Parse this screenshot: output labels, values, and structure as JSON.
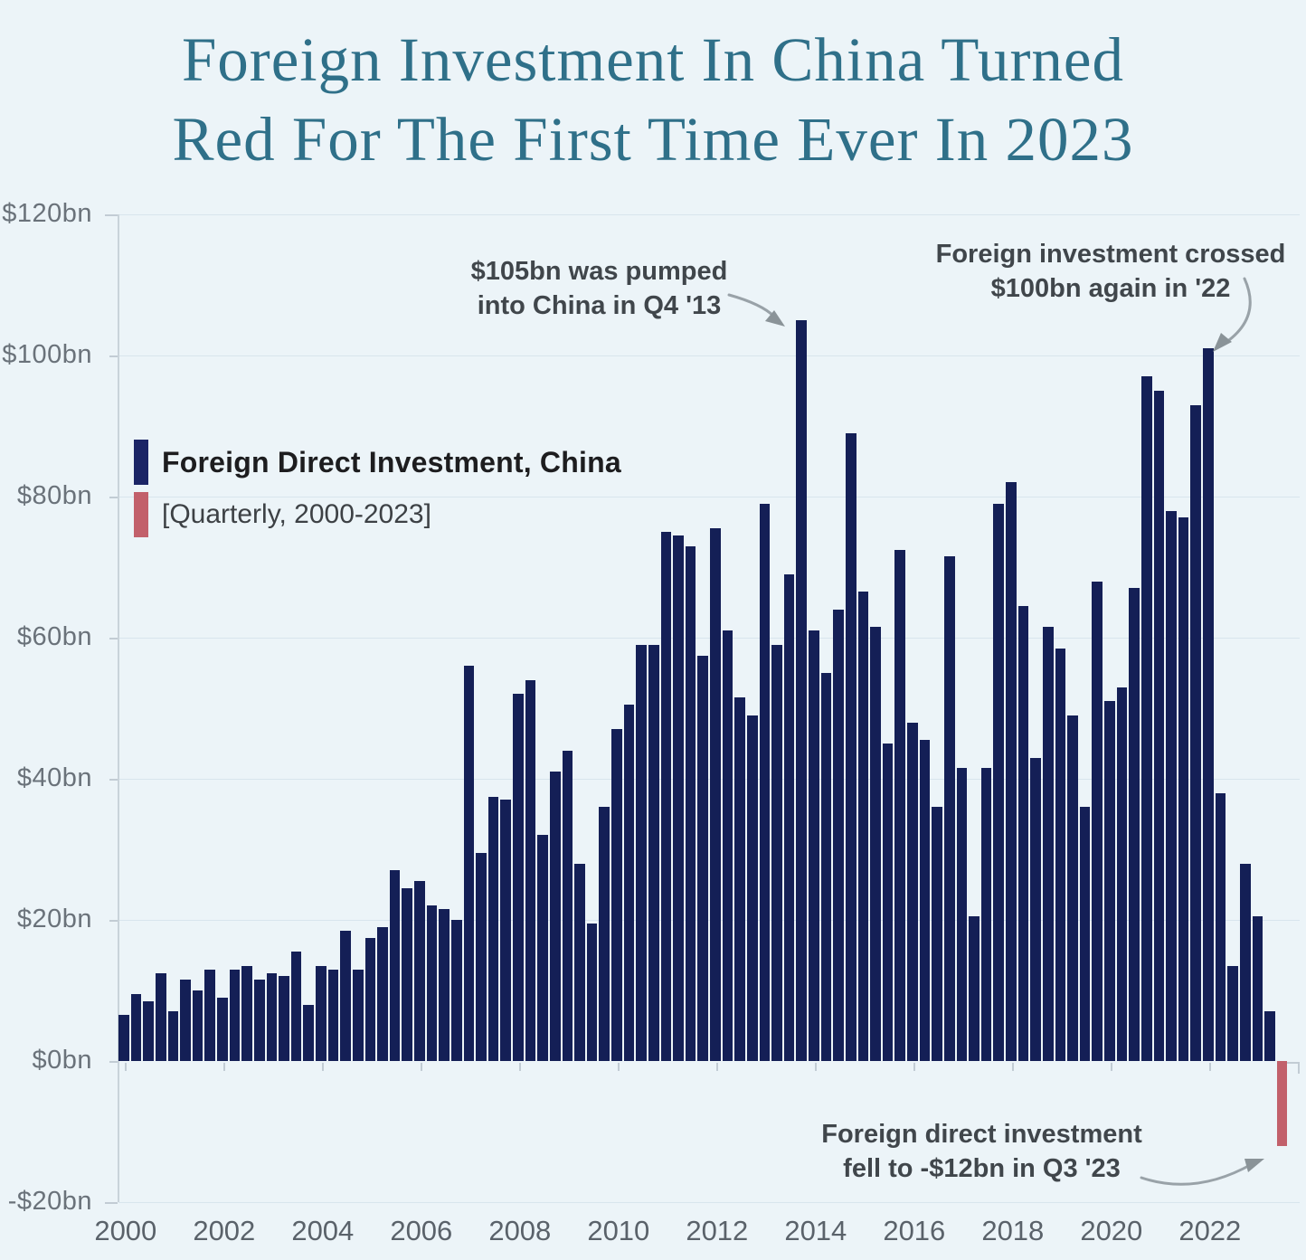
{
  "title": {
    "line1": "Foreign Investment In China Turned",
    "line2": "Red For The First Time Ever In 2023"
  },
  "legend": {
    "series_label": "Foreign Direct Investment, China",
    "sub_label": "[Quarterly, 2000-2023]",
    "series_color": "#1b2566",
    "negative_color": "#c2606b"
  },
  "annotations": [
    {
      "id": "q4-2013-peak",
      "line1": "$105bn was pumped",
      "line2": "into China in Q4 '13"
    },
    {
      "id": "crossed-2022",
      "line1": "Foreign investment crossed",
      "line2": "$100bn again in '22"
    },
    {
      "id": "q3-2023-negative",
      "line1": "Foreign direct investment",
      "line2": "fell to -$12bn in Q3 '23"
    }
  ],
  "chart_data": {
    "type": "bar",
    "title": "Foreign Direct Investment, China [Quarterly, 2000-2023]",
    "unit": "USD billions",
    "frequency": "quarterly",
    "start_period": "2000Q1",
    "end_period": "2023Q3",
    "bar_color": "#141f56",
    "negative_bar_color": "#c2606b",
    "grid": "faint-horizontal",
    "legend_position": "upper-left-inside",
    "ylim": [
      -20,
      120
    ],
    "y_ticks": [
      {
        "value": 120,
        "label": "$120bn"
      },
      {
        "value": 100,
        "label": "$100bn"
      },
      {
        "value": 80,
        "label": "$80bn"
      },
      {
        "value": 60,
        "label": "$60bn"
      },
      {
        "value": 40,
        "label": "$40bn"
      },
      {
        "value": 20,
        "label": "$20bn"
      },
      {
        "value": 0,
        "label": "$0bn"
      },
      {
        "value": -20,
        "label": "-$20bn"
      }
    ],
    "x_tick_labels": [
      "2000",
      "2002",
      "2004",
      "2006",
      "2008",
      "2010",
      "2012",
      "2014",
      "2016",
      "2018",
      "2020",
      "2022"
    ],
    "values": [
      6.5,
      9.5,
      8.5,
      12.5,
      7,
      11.5,
      10,
      13,
      9,
      13,
      13.5,
      11.5,
      12.5,
      12,
      15.5,
      8,
      13.5,
      13,
      18.5,
      13,
      17.5,
      19,
      27,
      24.5,
      25.5,
      22,
      21.5,
      20,
      56,
      29.5,
      37.5,
      37,
      52,
      54,
      32,
      41,
      44,
      28,
      19.5,
      36,
      47,
      50.5,
      59,
      59,
      75,
      74.5,
      73,
      57.5,
      75.5,
      61,
      51.5,
      49,
      79,
      59,
      69,
      105,
      61,
      55,
      64,
      89,
      66.5,
      61.5,
      45,
      72.5,
      48,
      45.5,
      36,
      71.5,
      41.5,
      20.5,
      41.5,
      79,
      82,
      64.5,
      43,
      61.5,
      58.5,
      49,
      36,
      68,
      51,
      53,
      67,
      97,
      95,
      78,
      77,
      93,
      101,
      38,
      13.5,
      28,
      20.5,
      7,
      -12
    ],
    "callouts": [
      {
        "period": "2013Q4",
        "value": 105
      },
      {
        "period": "2022Q1",
        "value": 101
      },
      {
        "period": "2023Q3",
        "value": -12
      }
    ]
  }
}
